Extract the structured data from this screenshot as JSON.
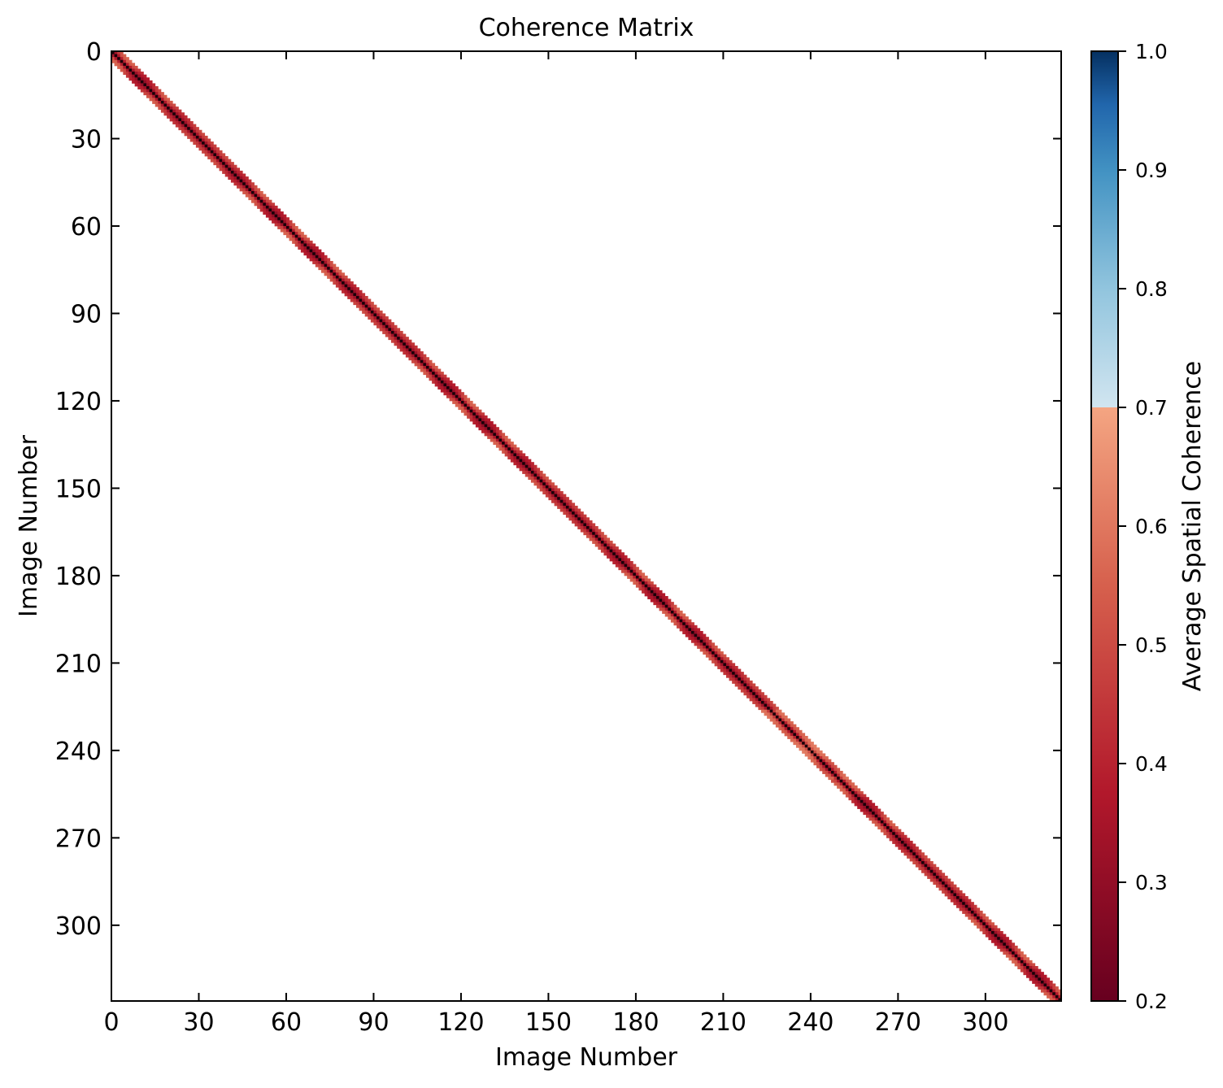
{
  "chart_data": {
    "type": "heatmap",
    "title": "Coherence Matrix",
    "xlabel": "Image Number",
    "ylabel": "Image Number",
    "x_ticks": [
      0,
      30,
      60,
      90,
      120,
      150,
      180,
      210,
      240,
      270,
      300
    ],
    "y_ticks": [
      0,
      30,
      60,
      90,
      120,
      150,
      180,
      210,
      240,
      270,
      300
    ],
    "xlim": [
      0,
      326
    ],
    "ylim": [
      326,
      0
    ],
    "n_images": 326,
    "band_half_width": 3,
    "diagonal_value": 0.2,
    "band_value_range": [
      0.25,
      0.6
    ],
    "colorbar": {
      "label": "Average Spatial Coherence",
      "range": [
        0.2,
        1.0
      ],
      "ticks": [
        "0.2",
        "0.3",
        "0.4",
        "0.5",
        "0.6",
        "0.7",
        "0.8",
        "0.9",
        "1.0"
      ],
      "colormap": "RdBu",
      "colors": [
        "#67001f",
        "#b2182b",
        "#d6604d",
        "#f4a582",
        "#d1e5f0",
        "#92c5de",
        "#4393c3",
        "#2166ac",
        "#053061"
      ]
    },
    "grid": false
  }
}
